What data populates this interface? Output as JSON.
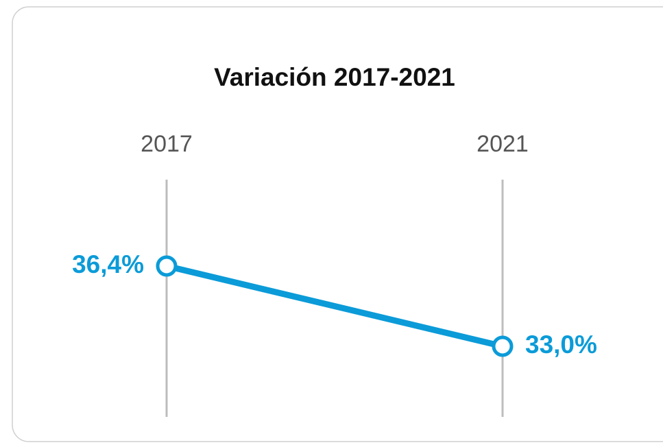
{
  "chart_data": {
    "type": "line",
    "title": "Variación 2017-2021",
    "categories": [
      "2017",
      "2021"
    ],
    "values": [
      36.4,
      33.0
    ],
    "value_labels": [
      "36,4%",
      "33,0%"
    ],
    "color": "#0b9bd8"
  }
}
